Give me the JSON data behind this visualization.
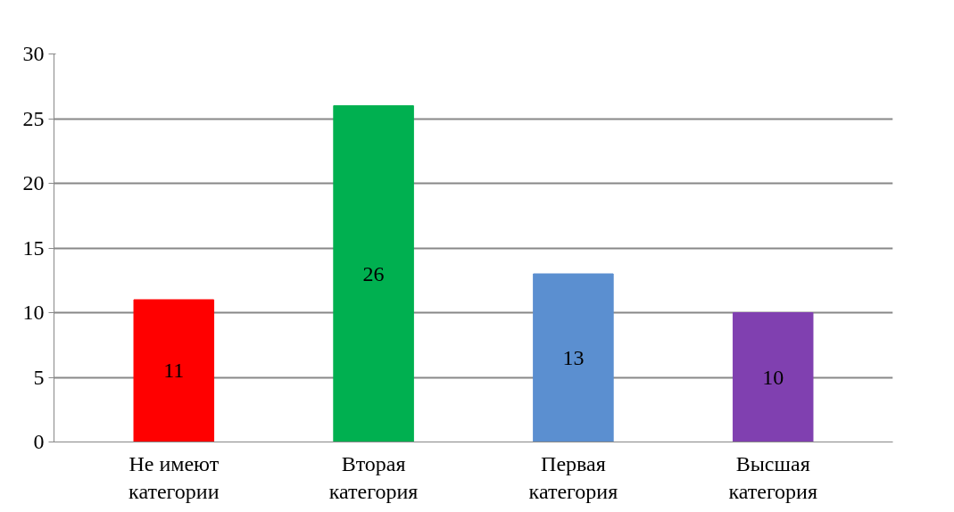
{
  "chart_data": {
    "type": "bar",
    "categories": [
      "Не имеют категории",
      "Вторая категория",
      "Первая категория",
      "Высшая категория"
    ],
    "values": [
      11,
      26,
      13,
      10
    ],
    "colors": [
      "#ff0000",
      "#00b050",
      "#5b8fd0",
      "#8040b0"
    ],
    "ylim": [
      0,
      30
    ],
    "yticks": [
      0,
      5,
      10,
      15,
      20,
      25,
      30
    ],
    "grid": "y",
    "data_labels": true
  }
}
